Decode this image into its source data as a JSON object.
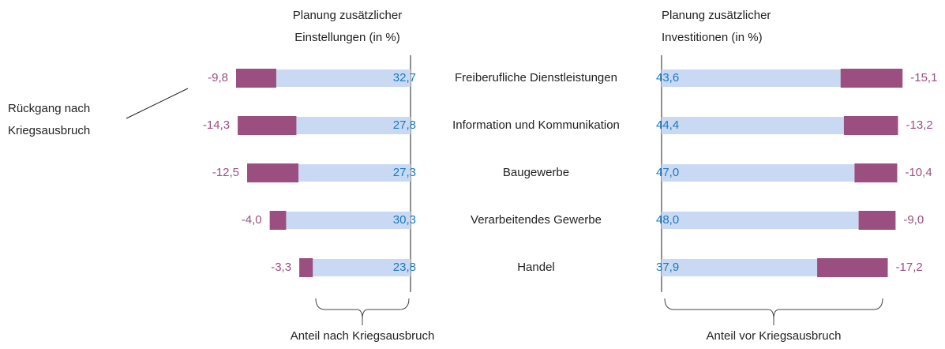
{
  "chart_data": [
    {
      "type": "bar",
      "title": "Planung zusätzlicher Einstellungen (in %)",
      "categories": [
        "Freiberufliche Dienstleistungen",
        "Information und Kommunikation",
        "Baugewerbe",
        "Verarbeitendes Gewerbe",
        "Handel"
      ],
      "annotation": "Rückgang nach Kriegsausbruch",
      "series": [
        {
          "name": "Anteil nach Kriegsausbruch",
          "color": "#c9d9f3",
          "label_color": "#1a7abf",
          "values": [
            32.7,
            27.8,
            27.3,
            30.3,
            23.8
          ],
          "value_labels": [
            "32,7",
            "27,8",
            "27,3",
            "30,3",
            "23,8"
          ]
        },
        {
          "name": "Rückgang nach Kriegsausbruch",
          "color": "#9b4f80",
          "label_color": "#9b4f80",
          "values": [
            -9.8,
            -14.3,
            -12.5,
            -4.0,
            -3.3
          ],
          "value_labels": [
            "-9,8",
            "-14,3",
            "-12,5",
            "-4,0",
            "-3,3"
          ]
        }
      ]
    },
    {
      "type": "bar",
      "title": "Planung zusätzlicher Investitionen (in %)",
      "series": [
        {
          "name": "Anteil vor Kriegsausbruch",
          "color": "#c9d9f3",
          "label_color": "#1a7abf",
          "values": [
            43.6,
            44.4,
            47.0,
            48.0,
            37.9
          ],
          "value_labels": [
            "43,6",
            "44,4",
            "47,0",
            "48,0",
            "37,9"
          ]
        },
        {
          "color": "#9b4f80",
          "label_color": "#9b4f80",
          "values": [
            -15.1,
            -13.2,
            -10.4,
            -9.0,
            -17.2
          ],
          "value_labels": [
            "-15,1",
            "-13,2",
            "-10,4",
            "-9,0",
            "-17,2"
          ]
        }
      ]
    }
  ]
}
